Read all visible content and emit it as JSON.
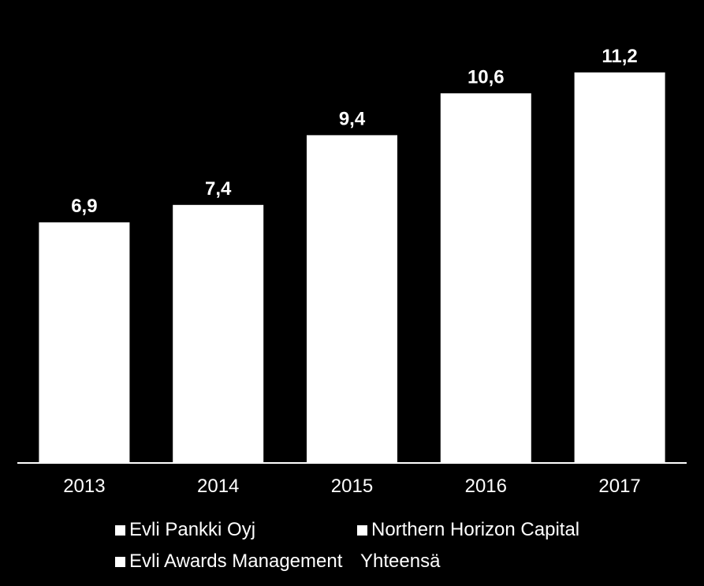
{
  "chart_data": {
    "type": "bar",
    "categories": [
      "2013",
      "2014",
      "2015",
      "2016",
      "2017"
    ],
    "values": [
      6.9,
      7.4,
      9.4,
      10.6,
      11.2
    ],
    "value_labels": [
      "6,9",
      "7,4",
      "9,4",
      "10,6",
      "11,2"
    ],
    "title": "",
    "xlabel": "",
    "ylabel": "",
    "ylim": [
      0,
      12.1
    ],
    "grid": false,
    "legend_position": "bottom",
    "colors": {
      "background": "#000000",
      "bar": "#ffffff",
      "text": "#ffffff",
      "axis": "#ffffff"
    }
  },
  "legend": {
    "items": [
      {
        "label": "Evli Pankki Oyj",
        "swatch": true
      },
      {
        "label": "Northern Horizon Capital",
        "swatch": true
      },
      {
        "label": "Evli Awards Management",
        "swatch": true
      },
      {
        "label": "Yhteensä",
        "swatch": false
      }
    ]
  }
}
